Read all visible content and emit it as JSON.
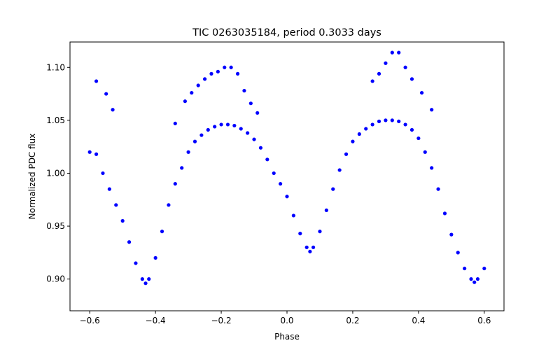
{
  "chart_data": {
    "type": "scatter",
    "title": "TIC 0263035184, period 0.3033 days",
    "xlabel": "Phase",
    "ylabel": "Normalized PDC flux",
    "xlim": [
      -0.66,
      0.66
    ],
    "ylim": [
      0.87,
      1.124
    ],
    "xticks": [
      -0.6,
      -0.4,
      -0.2,
      0.0,
      0.2,
      0.4,
      0.6
    ],
    "xtick_labels": [
      "−0.6",
      "−0.4",
      "−0.2",
      "0.0",
      "0.2",
      "0.4",
      "0.6"
    ],
    "yticks": [
      0.9,
      0.95,
      1.0,
      1.05,
      1.1
    ],
    "ytick_labels": [
      "0.90",
      "0.95",
      "1.00",
      "1.05",
      "1.10"
    ],
    "grid": false,
    "marker_color": "#0000ff",
    "series": [
      {
        "x": [
          -0.6,
          -0.58,
          -0.56,
          -0.54,
          -0.52,
          -0.5,
          -0.48,
          -0.46,
          -0.44,
          -0.43,
          -0.42,
          -0.4,
          -0.38,
          -0.36,
          -0.34,
          -0.32,
          -0.3,
          -0.28,
          -0.26,
          -0.24,
          -0.22,
          -0.2,
          -0.18,
          -0.16,
          -0.14,
          -0.12,
          -0.1,
          -0.08,
          -0.06,
          -0.04,
          -0.02,
          0.0,
          0.02,
          0.04,
          0.06,
          0.07,
          0.08,
          0.1,
          0.12,
          0.14,
          0.16,
          0.18,
          0.2,
          0.22,
          0.24,
          0.26,
          0.28,
          0.3,
          0.32,
          0.34,
          0.36,
          0.38,
          0.4,
          0.42,
          0.44,
          0.46,
          0.48,
          0.5,
          0.52,
          0.54,
          0.56,
          0.57,
          0.58,
          0.6
        ],
        "y": [
          1.02,
          1.018,
          1.0,
          0.985,
          0.97,
          0.955,
          0.935,
          0.915,
          0.9,
          0.896,
          0.9,
          0.92,
          0.945,
          0.97,
          0.99,
          1.005,
          1.02,
          1.03,
          1.036,
          1.041,
          1.044,
          1.046,
          1.046,
          1.045,
          1.042,
          1.038,
          1.032,
          1.024,
          1.013,
          1.0,
          0.99,
          0.978,
          0.96,
          0.943,
          0.93,
          0.926,
          0.93,
          0.945,
          0.965,
          0.985,
          1.003,
          1.018,
          1.03,
          1.037,
          1.042,
          1.046,
          1.049,
          1.05,
          1.05,
          1.049,
          1.046,
          1.041,
          1.033,
          1.02,
          1.005,
          0.985,
          0.962,
          0.942,
          0.925,
          0.91,
          0.9,
          0.897,
          0.9,
          0.91
        ]
      }
    ],
    "outliers": {
      "x": [
        -0.58,
        -0.55,
        -0.53,
        -0.34,
        -0.31,
        -0.29,
        -0.27,
        -0.25,
        -0.23,
        -0.21,
        -0.19,
        -0.17,
        -0.15,
        -0.13,
        -0.11,
        -0.09,
        0.26,
        0.28,
        0.3,
        0.32,
        0.34,
        0.36,
        0.38,
        0.41,
        0.44
      ],
      "y": [
        1.087,
        1.075,
        1.06,
        1.047,
        1.068,
        1.076,
        1.083,
        1.089,
        1.094,
        1.096,
        1.1,
        1.1,
        1.094,
        1.078,
        1.066,
        1.057,
        1.087,
        1.094,
        1.104,
        1.114,
        1.114,
        1.1,
        1.089,
        1.076,
        1.06
      ]
    }
  }
}
